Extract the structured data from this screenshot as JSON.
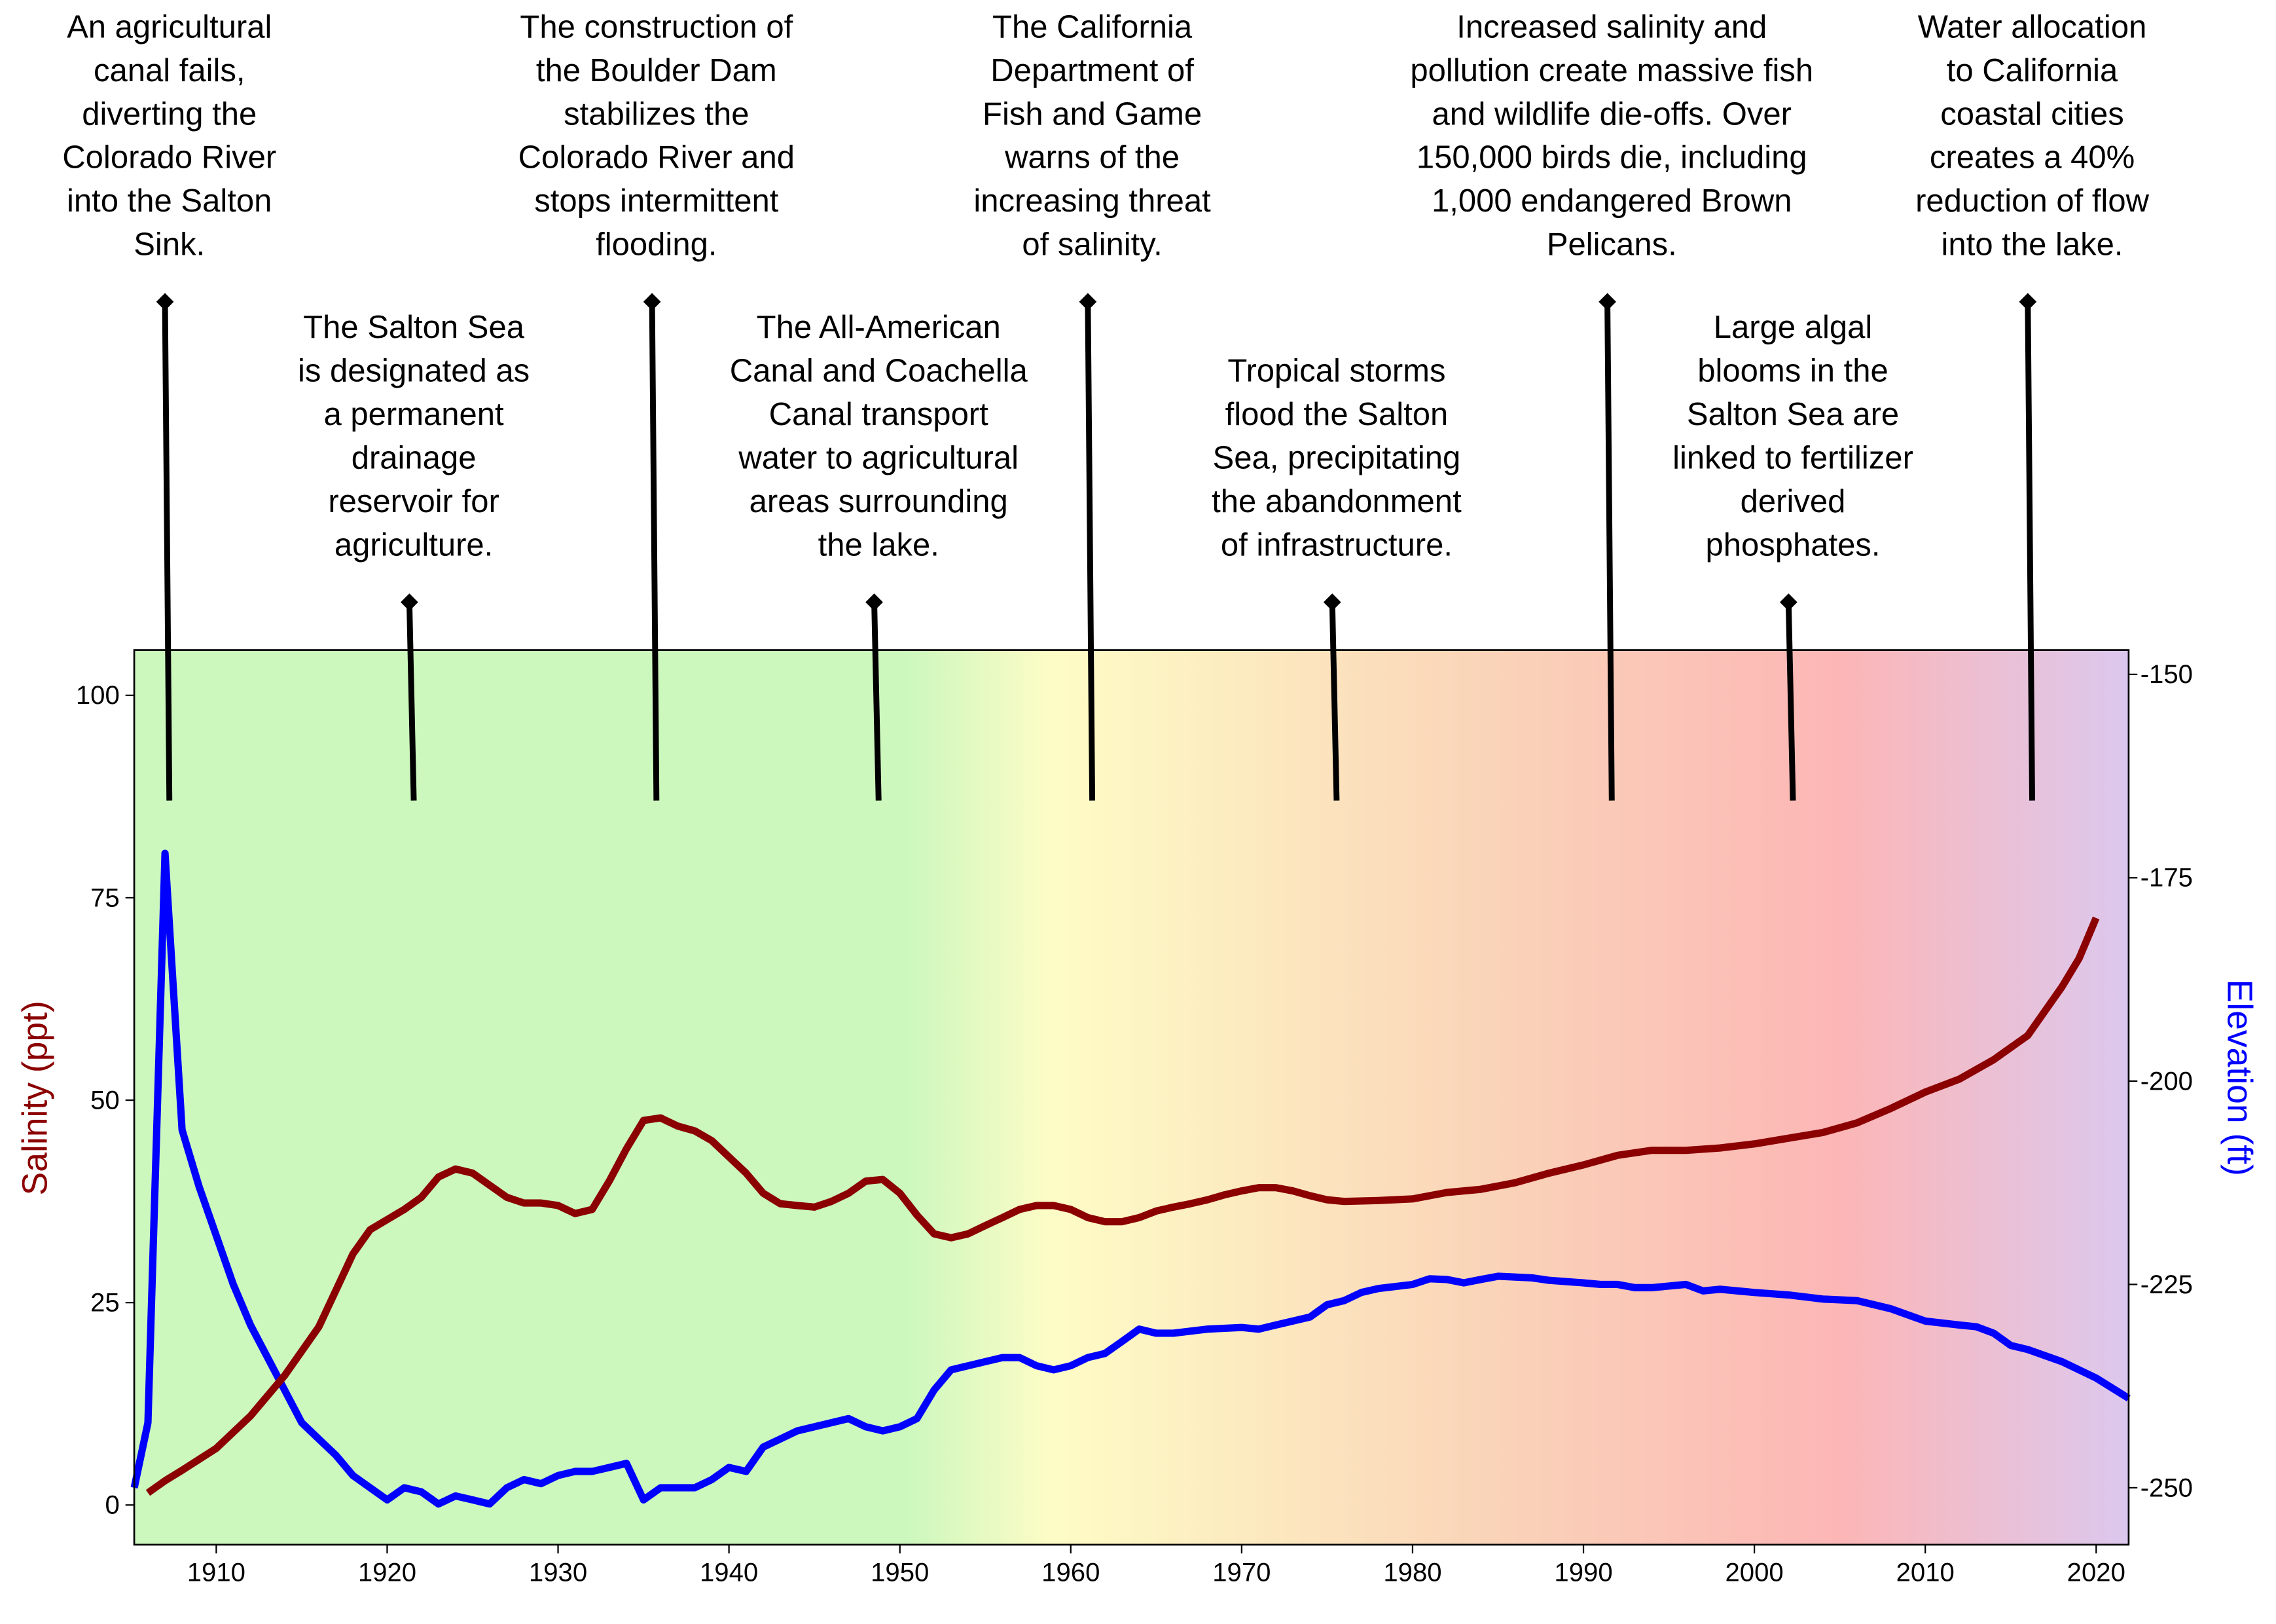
{
  "chart_data": {
    "type": "line",
    "xlim": [
      1905.2,
      2021.9
    ],
    "x_ticks": [
      "1910",
      "1920",
      "1930",
      "1940",
      "1950",
      "1960",
      "1970",
      "1980",
      "1990",
      "2000",
      "2010",
      "2020"
    ],
    "ylabel_left": "Salinity (ppt)",
    "ylabel_right": "Elevation (ft)",
    "ylim_left": [
      -4.9,
      105.6
    ],
    "ylim_right": [
      -257,
      -147
    ],
    "y_ticks_left": [
      "0",
      "25",
      "50",
      "75",
      "100"
    ],
    "y_ticks_right": [
      "-250",
      "-225",
      "-200",
      "-175",
      "-150"
    ],
    "grid": false,
    "colors": {
      "salinity": "#8b0000",
      "elevation": "#0000ff",
      "annotation": "#000000"
    },
    "background_bands": [
      {
        "year": 1905.2,
        "color": "#ccf8be"
      },
      {
        "year": 1950.4,
        "color": "#ccf8be"
      },
      {
        "year": 1959,
        "color": "#fefcc6"
      },
      {
        "year": 1985,
        "color": "#fad3b8"
      },
      {
        "year": 2005,
        "color": "#fcb6b6"
      },
      {
        "year": 2021.9,
        "color": "#dcc8ee"
      }
    ],
    "series": [
      {
        "key": "salinity",
        "axis": "left",
        "x": [
          1906,
          1907,
          1908,
          1910,
          1912,
          1914,
          1916,
          1918,
          1919,
          1921,
          1922,
          1923,
          1924,
          1925,
          1926,
          1927,
          1928,
          1929,
          1930,
          1931,
          1932,
          1933,
          1934,
          1935,
          1936,
          1937,
          1938,
          1939,
          1940,
          1941,
          1942,
          1943,
          1944,
          1945,
          1946,
          1947,
          1948,
          1949,
          1950,
          1951,
          1952,
          1953,
          1954,
          1955,
          1956,
          1957,
          1958,
          1959,
          1960,
          1961,
          1962,
          1963,
          1964,
          1965,
          1966,
          1967,
          1968,
          1969,
          1970,
          1971,
          1972,
          1973,
          1974,
          1975,
          1976,
          1978,
          1980,
          1982,
          1984,
          1986,
          1988,
          1990,
          1992,
          1994,
          1996,
          1998,
          2000,
          2002,
          2004,
          2006,
          2008,
          2010,
          2012,
          2014,
          2016,
          2017,
          2018,
          2019,
          2020
        ],
        "y": [
          1.5,
          3,
          4.3,
          7,
          11,
          16,
          22,
          31,
          34,
          36.5,
          38,
          40.5,
          41.5,
          41,
          39.5,
          38,
          37.3,
          37.3,
          37,
          36,
          36.5,
          40,
          44,
          47.5,
          47.8,
          46.8,
          46.2,
          45,
          43,
          41,
          38.5,
          37.2,
          37,
          36.8,
          37.5,
          38.5,
          40,
          40.2,
          38.5,
          35.8,
          33.5,
          33,
          33.5,
          34.5,
          35.5,
          36.5,
          37,
          37,
          36.5,
          35.5,
          35,
          35,
          35.5,
          36.3,
          36.8,
          37.2,
          37.7,
          38.3,
          38.8,
          39.2,
          39.2,
          38.8,
          38.2,
          37.7,
          37.5,
          37.6,
          37.8,
          38.6,
          39,
          39.8,
          41,
          42,
          43.2,
          43.8,
          43.8,
          44.1,
          44.6,
          45.3,
          46,
          47.2,
          49,
          51,
          52.6,
          55,
          58,
          61,
          64,
          67.5,
          72.5
        ]
      },
      {
        "key": "elevation",
        "axis": "right",
        "x": [
          1905.2,
          1906,
          1907,
          1908,
          1909,
          1910,
          1911,
          1912,
          1913,
          1914,
          1915,
          1916,
          1917,
          1918,
          1919,
          1920,
          1921,
          1922,
          1923,
          1924,
          1925,
          1926,
          1927,
          1928,
          1929,
          1930,
          1931,
          1932,
          1933,
          1934,
          1935,
          1936,
          1937,
          1938,
          1939,
          1940,
          1941,
          1942,
          1943,
          1944,
          1945,
          1946,
          1947,
          1948,
          1949,
          1950,
          1951,
          1952,
          1953,
          1954,
          1955,
          1956,
          1957,
          1958,
          1959,
          1960,
          1961,
          1962,
          1963,
          1964,
          1965,
          1966,
          1968,
          1970,
          1971,
          1972,
          1974,
          1975,
          1976,
          1977,
          1978,
          1980,
          1981,
          1982,
          1983,
          1984,
          1985,
          1987,
          1988,
          1990,
          1991,
          1992,
          1993,
          1994,
          1996,
          1997,
          1998,
          2000,
          2002,
          2004,
          2006,
          2008,
          2010,
          2012,
          2013,
          2014,
          2015,
          2016,
          2018,
          2019,
          2020,
          2021.9
        ],
        "y": [
          -250,
          -242,
          -172,
          -206,
          -213,
          -219,
          -225,
          -230,
          -234,
          -238,
          -242,
          -244,
          -246,
          -248.5,
          -250,
          -251.5,
          -250,
          -250.5,
          -252,
          -251,
          -251.5,
          -252,
          -250,
          -249,
          -249.5,
          -248.5,
          -248,
          -248,
          -247.5,
          -247,
          -251.5,
          -250,
          -250,
          -250,
          -249,
          -247.5,
          -248,
          -245,
          -244,
          -243,
          -242.5,
          -242,
          -241.5,
          -242.5,
          -243,
          -242.5,
          -241.5,
          -238,
          -235.5,
          -235,
          -234.5,
          -234,
          -234,
          -235,
          -235.5,
          -235,
          -234,
          -233.5,
          -232,
          -230.5,
          -231,
          -231,
          -230.5,
          -230.3,
          -230.5,
          -230,
          -229,
          -227.5,
          -227,
          -226,
          -225.5,
          -225,
          -224.3,
          -224.4,
          -224.8,
          -224.4,
          -224,
          -224.2,
          -224.5,
          -224.8,
          -225,
          -225,
          -225.4,
          -225.4,
          -225,
          -225.8,
          -225.6,
          -226,
          -226.3,
          -226.8,
          -227,
          -228,
          -229.5,
          -230,
          -230.2,
          -231,
          -232.5,
          -233,
          -234.5,
          -235.5,
          -236.5,
          -239
        ]
      }
    ],
    "annotations": [
      {
        "year": 1907,
        "top": 148.6,
        "bottom": 87,
        "lines": [
          "An agricultural",
          "canal fails,",
          "diverting the",
          "Colorado River",
          "into the Salton",
          "Sink."
        ]
      },
      {
        "year": 1921.3,
        "top": 111.5,
        "bottom": 87,
        "lines": [
          "The Salton Sea",
          "is designated as",
          "a permanent",
          "drainage",
          "reservoir for",
          "agriculture."
        ]
      },
      {
        "year": 1935.5,
        "top": 148.6,
        "bottom": 87,
        "lines": [
          "The construction of",
          "the Boulder Dam",
          "stabilizes the",
          "Colorado River and",
          "stops intermittent",
          "flooding."
        ]
      },
      {
        "year": 1948.5,
        "top": 111.5,
        "bottom": 87,
        "lines": [
          "The All-American",
          "Canal and Coachella",
          "Canal transport",
          "water to agricultural",
          "areas surrounding",
          "the lake."
        ]
      },
      {
        "year": 1961,
        "top": 148.6,
        "bottom": 87,
        "lines": [
          "The California",
          "Department of",
          "Fish and Game",
          "warns of the",
          "increasing threat",
          "of salinity."
        ]
      },
      {
        "year": 1975.3,
        "top": 111.5,
        "bottom": 87,
        "lines": [
          "Tropical storms",
          "flood the Salton",
          "Sea, precipitating",
          "the abandonment",
          "of infrastructure."
        ]
      },
      {
        "year": 1991.4,
        "top": 148.6,
        "bottom": 87,
        "lines": [
          "Increased salinity and",
          "pollution create massive fish",
          "and wildlife die-offs. Over",
          "150,000 birds die, including",
          "1,000 endangered Brown",
          "Pelicans."
        ]
      },
      {
        "year": 2002,
        "top": 111.5,
        "bottom": 87,
        "lines": [
          "Large algal",
          "blooms in the",
          "Salton Sea are",
          "linked to fertilizer",
          "derived",
          "phosphates."
        ]
      },
      {
        "year": 2016,
        "top": 148.6,
        "bottom": 87,
        "lines": [
          "Water allocation",
          "to California",
          "coastal cities",
          "creates a 40%",
          "reduction of flow",
          "into the lake."
        ]
      }
    ]
  }
}
